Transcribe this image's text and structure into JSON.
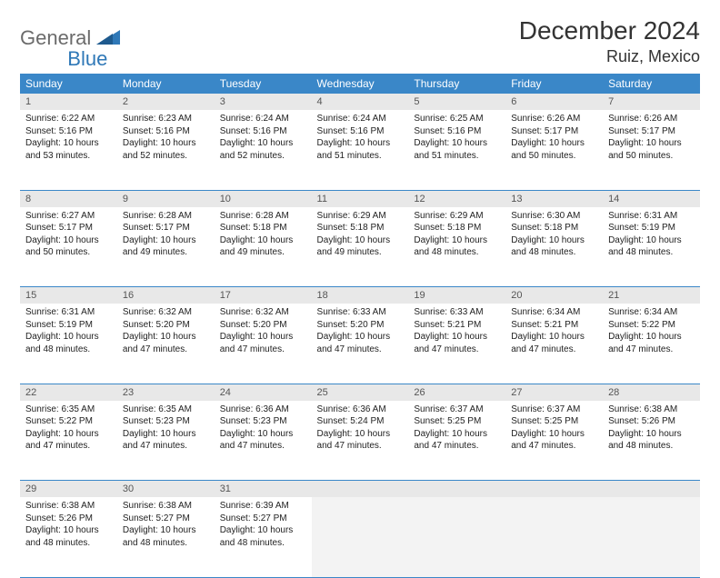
{
  "brand": {
    "part1": "General",
    "part2": "Blue"
  },
  "title": "December 2024",
  "location": "Ruiz, Mexico",
  "colors": {
    "header_bg": "#3a87c8",
    "header_fg": "#ffffff",
    "daynum_bg": "#e8e8e8",
    "cell_border": "#3a87c8",
    "brand_gray": "#6b6b6b",
    "brand_blue": "#2f78b7"
  },
  "weekdays": [
    "Sunday",
    "Monday",
    "Tuesday",
    "Wednesday",
    "Thursday",
    "Friday",
    "Saturday"
  ],
  "weeks": [
    {
      "nums": [
        "1",
        "2",
        "3",
        "4",
        "5",
        "6",
        "7"
      ],
      "cells": [
        {
          "sunrise": "6:22 AM",
          "sunset": "5:16 PM",
          "daylight": "10 hours and 53 minutes."
        },
        {
          "sunrise": "6:23 AM",
          "sunset": "5:16 PM",
          "daylight": "10 hours and 52 minutes."
        },
        {
          "sunrise": "6:24 AM",
          "sunset": "5:16 PM",
          "daylight": "10 hours and 52 minutes."
        },
        {
          "sunrise": "6:24 AM",
          "sunset": "5:16 PM",
          "daylight": "10 hours and 51 minutes."
        },
        {
          "sunrise": "6:25 AM",
          "sunset": "5:16 PM",
          "daylight": "10 hours and 51 minutes."
        },
        {
          "sunrise": "6:26 AM",
          "sunset": "5:17 PM",
          "daylight": "10 hours and 50 minutes."
        },
        {
          "sunrise": "6:26 AM",
          "sunset": "5:17 PM",
          "daylight": "10 hours and 50 minutes."
        }
      ]
    },
    {
      "nums": [
        "8",
        "9",
        "10",
        "11",
        "12",
        "13",
        "14"
      ],
      "cells": [
        {
          "sunrise": "6:27 AM",
          "sunset": "5:17 PM",
          "daylight": "10 hours and 50 minutes."
        },
        {
          "sunrise": "6:28 AM",
          "sunset": "5:17 PM",
          "daylight": "10 hours and 49 minutes."
        },
        {
          "sunrise": "6:28 AM",
          "sunset": "5:18 PM",
          "daylight": "10 hours and 49 minutes."
        },
        {
          "sunrise": "6:29 AM",
          "sunset": "5:18 PM",
          "daylight": "10 hours and 49 minutes."
        },
        {
          "sunrise": "6:29 AM",
          "sunset": "5:18 PM",
          "daylight": "10 hours and 48 minutes."
        },
        {
          "sunrise": "6:30 AM",
          "sunset": "5:18 PM",
          "daylight": "10 hours and 48 minutes."
        },
        {
          "sunrise": "6:31 AM",
          "sunset": "5:19 PM",
          "daylight": "10 hours and 48 minutes."
        }
      ]
    },
    {
      "nums": [
        "15",
        "16",
        "17",
        "18",
        "19",
        "20",
        "21"
      ],
      "cells": [
        {
          "sunrise": "6:31 AM",
          "sunset": "5:19 PM",
          "daylight": "10 hours and 48 minutes."
        },
        {
          "sunrise": "6:32 AM",
          "sunset": "5:20 PM",
          "daylight": "10 hours and 47 minutes."
        },
        {
          "sunrise": "6:32 AM",
          "sunset": "5:20 PM",
          "daylight": "10 hours and 47 minutes."
        },
        {
          "sunrise": "6:33 AM",
          "sunset": "5:20 PM",
          "daylight": "10 hours and 47 minutes."
        },
        {
          "sunrise": "6:33 AM",
          "sunset": "5:21 PM",
          "daylight": "10 hours and 47 minutes."
        },
        {
          "sunrise": "6:34 AM",
          "sunset": "5:21 PM",
          "daylight": "10 hours and 47 minutes."
        },
        {
          "sunrise": "6:34 AM",
          "sunset": "5:22 PM",
          "daylight": "10 hours and 47 minutes."
        }
      ]
    },
    {
      "nums": [
        "22",
        "23",
        "24",
        "25",
        "26",
        "27",
        "28"
      ],
      "cells": [
        {
          "sunrise": "6:35 AM",
          "sunset": "5:22 PM",
          "daylight": "10 hours and 47 minutes."
        },
        {
          "sunrise": "6:35 AM",
          "sunset": "5:23 PM",
          "daylight": "10 hours and 47 minutes."
        },
        {
          "sunrise": "6:36 AM",
          "sunset": "5:23 PM",
          "daylight": "10 hours and 47 minutes."
        },
        {
          "sunrise": "6:36 AM",
          "sunset": "5:24 PM",
          "daylight": "10 hours and 47 minutes."
        },
        {
          "sunrise": "6:37 AM",
          "sunset": "5:25 PM",
          "daylight": "10 hours and 47 minutes."
        },
        {
          "sunrise": "6:37 AM",
          "sunset": "5:25 PM",
          "daylight": "10 hours and 47 minutes."
        },
        {
          "sunrise": "6:38 AM",
          "sunset": "5:26 PM",
          "daylight": "10 hours and 48 minutes."
        }
      ]
    },
    {
      "nums": [
        "29",
        "30",
        "31",
        "",
        "",
        "",
        ""
      ],
      "cells": [
        {
          "sunrise": "6:38 AM",
          "sunset": "5:26 PM",
          "daylight": "10 hours and 48 minutes."
        },
        {
          "sunrise": "6:38 AM",
          "sunset": "5:27 PM",
          "daylight": "10 hours and 48 minutes."
        },
        {
          "sunrise": "6:39 AM",
          "sunset": "5:27 PM",
          "daylight": "10 hours and 48 minutes."
        },
        null,
        null,
        null,
        null
      ]
    }
  ],
  "labels": {
    "sunrise": "Sunrise:",
    "sunset": "Sunset:",
    "daylight": "Daylight:"
  }
}
